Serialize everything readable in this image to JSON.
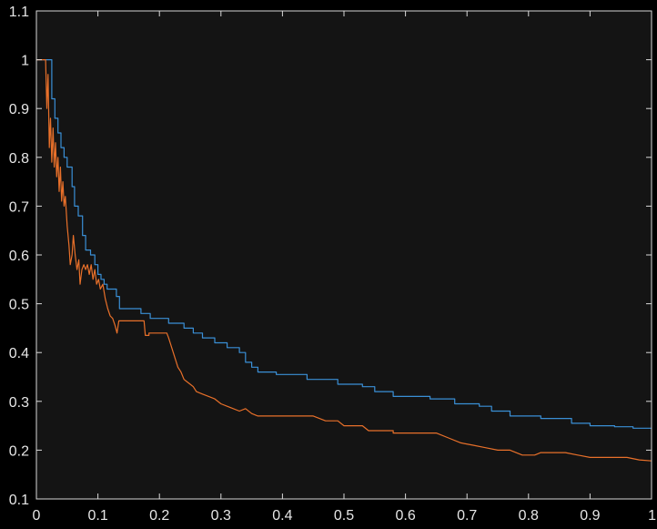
{
  "chart_data": {
    "type": "line",
    "title": "",
    "xlabel": "",
    "ylabel": "",
    "xlim": [
      0,
      1
    ],
    "ylim": [
      0.1,
      1.1
    ],
    "xticks": [
      0,
      0.1,
      0.2,
      0.3,
      0.4,
      0.5,
      0.6,
      0.7,
      0.8,
      0.9,
      1
    ],
    "xtick_labels": [
      "0",
      "0.1",
      "0.2",
      "0.3",
      "0.4",
      "0.5",
      "0.6",
      "0.7",
      "0.8",
      "0.9",
      "1"
    ],
    "yticks": [
      0.1,
      0.2,
      0.3,
      0.4,
      0.5,
      0.6,
      0.7,
      0.8,
      0.9,
      1,
      1.1
    ],
    "ytick_labels": [
      "0.1",
      "0.2",
      "0.3",
      "0.4",
      "0.5",
      "0.6",
      "0.7",
      "0.8",
      "0.9",
      "1",
      "1.1"
    ],
    "grid": false,
    "legend": null,
    "colors": {
      "background": "#000000",
      "plot_area": "#141414",
      "axis": "#d9d9d9",
      "text": "#e6e6e6"
    },
    "series": [
      {
        "color": "#3a8fd6",
        "points": [
          [
            0.0,
            1.0
          ],
          [
            0.025,
            1.0
          ],
          [
            0.025,
            0.92
          ],
          [
            0.03,
            0.92
          ],
          [
            0.03,
            0.88
          ],
          [
            0.035,
            0.88
          ],
          [
            0.035,
            0.85
          ],
          [
            0.04,
            0.85
          ],
          [
            0.04,
            0.82
          ],
          [
            0.045,
            0.82
          ],
          [
            0.045,
            0.8
          ],
          [
            0.05,
            0.8
          ],
          [
            0.05,
            0.78
          ],
          [
            0.058,
            0.78
          ],
          [
            0.058,
            0.74
          ],
          [
            0.062,
            0.74
          ],
          [
            0.062,
            0.7
          ],
          [
            0.068,
            0.7
          ],
          [
            0.068,
            0.68
          ],
          [
            0.075,
            0.68
          ],
          [
            0.075,
            0.64
          ],
          [
            0.08,
            0.64
          ],
          [
            0.08,
            0.61
          ],
          [
            0.088,
            0.61
          ],
          [
            0.088,
            0.6
          ],
          [
            0.095,
            0.6
          ],
          [
            0.095,
            0.58
          ],
          [
            0.1,
            0.58
          ],
          [
            0.1,
            0.56
          ],
          [
            0.105,
            0.56
          ],
          [
            0.105,
            0.55
          ],
          [
            0.11,
            0.55
          ],
          [
            0.11,
            0.54
          ],
          [
            0.115,
            0.54
          ],
          [
            0.115,
            0.53
          ],
          [
            0.13,
            0.53
          ],
          [
            0.13,
            0.515
          ],
          [
            0.135,
            0.515
          ],
          [
            0.135,
            0.49
          ],
          [
            0.17,
            0.49
          ],
          [
            0.17,
            0.48
          ],
          [
            0.185,
            0.48
          ],
          [
            0.185,
            0.47
          ],
          [
            0.215,
            0.47
          ],
          [
            0.215,
            0.46
          ],
          [
            0.24,
            0.46
          ],
          [
            0.24,
            0.45
          ],
          [
            0.255,
            0.45
          ],
          [
            0.255,
            0.44
          ],
          [
            0.27,
            0.44
          ],
          [
            0.27,
            0.43
          ],
          [
            0.29,
            0.43
          ],
          [
            0.29,
            0.42
          ],
          [
            0.31,
            0.42
          ],
          [
            0.31,
            0.41
          ],
          [
            0.33,
            0.41
          ],
          [
            0.33,
            0.4
          ],
          [
            0.34,
            0.4
          ],
          [
            0.34,
            0.38
          ],
          [
            0.35,
            0.38
          ],
          [
            0.35,
            0.37
          ],
          [
            0.36,
            0.37
          ],
          [
            0.36,
            0.36
          ],
          [
            0.39,
            0.36
          ],
          [
            0.39,
            0.355
          ],
          [
            0.44,
            0.355
          ],
          [
            0.44,
            0.345
          ],
          [
            0.49,
            0.345
          ],
          [
            0.49,
            0.335
          ],
          [
            0.53,
            0.335
          ],
          [
            0.53,
            0.33
          ],
          [
            0.55,
            0.33
          ],
          [
            0.55,
            0.32
          ],
          [
            0.58,
            0.32
          ],
          [
            0.58,
            0.31
          ],
          [
            0.64,
            0.31
          ],
          [
            0.64,
            0.305
          ],
          [
            0.68,
            0.305
          ],
          [
            0.68,
            0.295
          ],
          [
            0.72,
            0.295
          ],
          [
            0.72,
            0.29
          ],
          [
            0.74,
            0.29
          ],
          [
            0.74,
            0.28
          ],
          [
            0.77,
            0.28
          ],
          [
            0.77,
            0.27
          ],
          [
            0.82,
            0.27
          ],
          [
            0.82,
            0.265
          ],
          [
            0.87,
            0.265
          ],
          [
            0.87,
            0.255
          ],
          [
            0.9,
            0.255
          ],
          [
            0.9,
            0.25
          ],
          [
            0.94,
            0.25
          ],
          [
            0.94,
            0.248
          ],
          [
            0.97,
            0.248
          ],
          [
            0.97,
            0.245
          ],
          [
            1.0,
            0.245
          ]
        ]
      },
      {
        "color": "#e8702a",
        "points": [
          [
            0.0,
            1.0
          ],
          [
            0.015,
            1.0
          ],
          [
            0.017,
            0.9
          ],
          [
            0.019,
            0.97
          ],
          [
            0.021,
            0.82
          ],
          [
            0.023,
            0.88
          ],
          [
            0.025,
            0.79
          ],
          [
            0.027,
            0.86
          ],
          [
            0.029,
            0.78
          ],
          [
            0.031,
            0.83
          ],
          [
            0.033,
            0.76
          ],
          [
            0.035,
            0.8
          ],
          [
            0.037,
            0.73
          ],
          [
            0.039,
            0.78
          ],
          [
            0.041,
            0.71
          ],
          [
            0.043,
            0.75
          ],
          [
            0.045,
            0.7
          ],
          [
            0.047,
            0.72
          ],
          [
            0.05,
            0.66
          ],
          [
            0.053,
            0.62
          ],
          [
            0.055,
            0.58
          ],
          [
            0.058,
            0.6
          ],
          [
            0.06,
            0.64
          ],
          [
            0.063,
            0.6
          ],
          [
            0.066,
            0.57
          ],
          [
            0.069,
            0.59
          ],
          [
            0.071,
            0.54
          ],
          [
            0.074,
            0.57
          ],
          [
            0.077,
            0.58
          ],
          [
            0.08,
            0.57
          ],
          [
            0.083,
            0.58
          ],
          [
            0.086,
            0.56
          ],
          [
            0.089,
            0.58
          ],
          [
            0.092,
            0.55
          ],
          [
            0.095,
            0.57
          ],
          [
            0.098,
            0.54
          ],
          [
            0.101,
            0.55
          ],
          [
            0.104,
            0.53
          ],
          [
            0.108,
            0.54
          ],
          [
            0.112,
            0.51
          ],
          [
            0.116,
            0.49
          ],
          [
            0.12,
            0.475
          ],
          [
            0.124,
            0.47
          ],
          [
            0.128,
            0.455
          ],
          [
            0.131,
            0.44
          ],
          [
            0.134,
            0.465
          ],
          [
            0.175,
            0.465
          ],
          [
            0.177,
            0.435
          ],
          [
            0.183,
            0.435
          ],
          [
            0.183,
            0.44
          ],
          [
            0.212,
            0.44
          ],
          [
            0.215,
            0.43
          ],
          [
            0.22,
            0.41
          ],
          [
            0.225,
            0.39
          ],
          [
            0.23,
            0.37
          ],
          [
            0.235,
            0.36
          ],
          [
            0.24,
            0.345
          ],
          [
            0.245,
            0.34
          ],
          [
            0.25,
            0.335
          ],
          [
            0.255,
            0.33
          ],
          [
            0.26,
            0.32
          ],
          [
            0.27,
            0.315
          ],
          [
            0.28,
            0.31
          ],
          [
            0.29,
            0.305
          ],
          [
            0.3,
            0.295
          ],
          [
            0.31,
            0.29
          ],
          [
            0.32,
            0.285
          ],
          [
            0.33,
            0.28
          ],
          [
            0.34,
            0.285
          ],
          [
            0.35,
            0.275
          ],
          [
            0.36,
            0.27
          ],
          [
            0.4,
            0.27
          ],
          [
            0.45,
            0.27
          ],
          [
            0.46,
            0.265
          ],
          [
            0.47,
            0.26
          ],
          [
            0.49,
            0.26
          ],
          [
            0.5,
            0.25
          ],
          [
            0.53,
            0.25
          ],
          [
            0.54,
            0.24
          ],
          [
            0.58,
            0.24
          ],
          [
            0.58,
            0.235
          ],
          [
            0.65,
            0.235
          ],
          [
            0.67,
            0.225
          ],
          [
            0.69,
            0.215
          ],
          [
            0.71,
            0.21
          ],
          [
            0.73,
            0.205
          ],
          [
            0.75,
            0.2
          ],
          [
            0.77,
            0.2
          ],
          [
            0.79,
            0.19
          ],
          [
            0.81,
            0.19
          ],
          [
            0.82,
            0.195
          ],
          [
            0.86,
            0.195
          ],
          [
            0.88,
            0.19
          ],
          [
            0.9,
            0.185
          ],
          [
            0.96,
            0.185
          ],
          [
            0.98,
            0.18
          ],
          [
            1.0,
            0.178
          ]
        ]
      }
    ]
  }
}
